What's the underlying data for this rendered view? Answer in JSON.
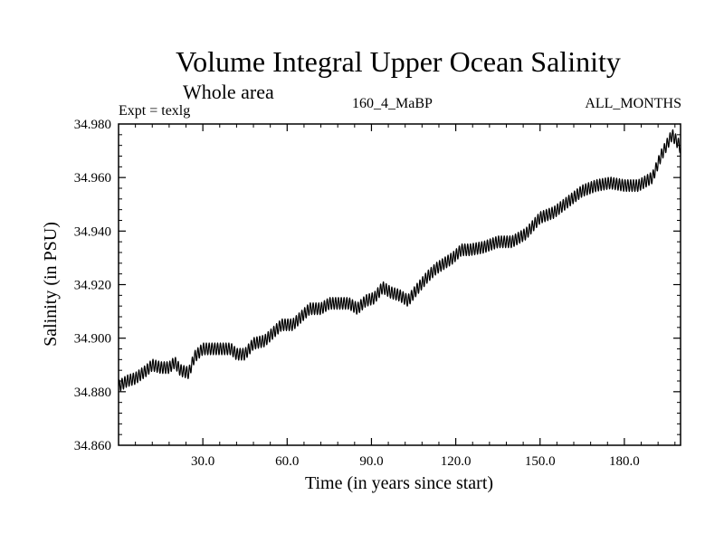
{
  "header": {
    "title": "Volume Integral Upper Ocean Salinity",
    "subtitle": "Whole area",
    "expt": "Expt = texlg",
    "center": "160_4_MaBP",
    "right": "ALL_MONTHS"
  },
  "chart_data": {
    "type": "line",
    "title": "Volume Integral Upper Ocean Salinity",
    "subtitle": "Whole area",
    "xlabel": "Time (in years since start)",
    "ylabel": "Salinity (in PSU)",
    "xlim": [
      0,
      200
    ],
    "ylim": [
      34.86,
      34.98
    ],
    "xticks": [
      30,
      60,
      90,
      120,
      150,
      180
    ],
    "xtick_labels": [
      "30.0",
      "60.0",
      "90.0",
      "120.0",
      "150.0",
      "180.0"
    ],
    "yticks": [
      34.86,
      34.88,
      34.9,
      34.92,
      34.94,
      34.96,
      34.98
    ],
    "ytick_labels": [
      "34.860",
      "34.880",
      "34.900",
      "34.920",
      "34.940",
      "34.960",
      "34.980"
    ],
    "grid": false,
    "series": [
      {
        "name": "Salinity",
        "color": "#000000",
        "seasonal_amplitude": 0.0022,
        "x": [
          0,
          3,
          6,
          10,
          12,
          15,
          18,
          20,
          22,
          25,
          27,
          30,
          35,
          40,
          42,
          45,
          48,
          52,
          55,
          58,
          62,
          65,
          68,
          72,
          75,
          78,
          82,
          85,
          88,
          91,
          94,
          97,
          100,
          103,
          106,
          110,
          113,
          116,
          119,
          122,
          125,
          130,
          135,
          140,
          145,
          150,
          155,
          160,
          165,
          170,
          175,
          180,
          185,
          190,
          193,
          195,
          197,
          199,
          200
        ],
        "y": [
          34.882,
          34.884,
          34.885,
          34.888,
          34.89,
          34.889,
          34.889,
          34.891,
          34.888,
          34.887,
          34.893,
          34.896,
          34.896,
          34.896,
          34.894,
          34.894,
          34.898,
          34.899,
          34.902,
          34.905,
          34.905,
          34.908,
          34.911,
          34.911,
          34.913,
          34.913,
          34.913,
          34.911,
          34.914,
          34.915,
          34.919,
          34.917,
          34.916,
          34.914,
          34.918,
          34.923,
          34.926,
          34.928,
          34.93,
          34.933,
          34.933,
          34.934,
          34.936,
          34.936,
          34.939,
          34.945,
          34.947,
          34.951,
          34.955,
          34.957,
          34.958,
          34.957,
          34.957,
          34.96,
          34.968,
          34.972,
          34.976,
          34.973,
          34.971
        ]
      }
    ]
  }
}
